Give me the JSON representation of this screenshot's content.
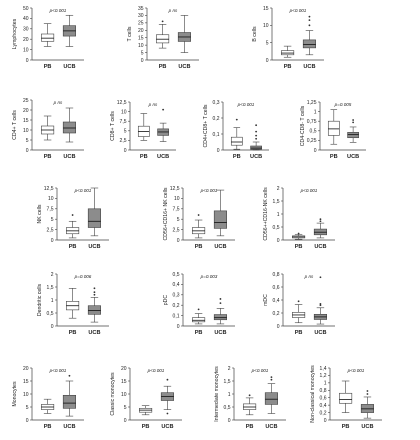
{
  "group_labels": [
    "PB",
    "UCB"
  ],
  "colors": {
    "pb_fill": "#ffffff",
    "ucb_fill": "#8c8c8c",
    "stroke": "#404040",
    "axis": "#404040"
  },
  "chart_data": [
    {
      "type": "boxplot",
      "ylabel": "Lymphocytes",
      "pvalue": "p<0.001",
      "ylim": [
        0,
        50
      ],
      "ticks": [
        "0",
        "10",
        "20",
        "30",
        "40",
        "50"
      ],
      "categories": [
        "PB",
        "UCB"
      ],
      "series": [
        {
          "min": 13,
          "q1": 18,
          "median": 21,
          "q3": 25,
          "max": 35,
          "outliers": []
        },
        {
          "min": 13,
          "q1": 23,
          "median": 28,
          "q3": 33,
          "max": 43,
          "outliers": []
        }
      ]
    },
    {
      "type": "boxplot",
      "ylabel": "T cells",
      "pvalue": "p ns",
      "ylim": [
        0,
        35
      ],
      "ticks": [
        "0",
        "5",
        "10",
        "15",
        "20",
        "25",
        "30",
        "35"
      ],
      "categories": [
        "PB",
        "UCB"
      ],
      "series": [
        {
          "min": 8,
          "q1": 11.5,
          "median": 14,
          "q3": 17,
          "max": 24,
          "outliers": [
            26
          ]
        },
        {
          "min": 5,
          "q1": 12.5,
          "median": 15.5,
          "q3": 18.5,
          "max": 30,
          "outliers": []
        }
      ]
    },
    {
      "type": "boxplot",
      "ylabel": "B cells",
      "pvalue": "p<0.001",
      "ylim": [
        0,
        15
      ],
      "ticks": [
        "0",
        "5",
        "10",
        "15"
      ],
      "categories": [
        "PB",
        "UCB"
      ],
      "series": [
        {
          "min": 0.8,
          "q1": 1.5,
          "median": 2,
          "q3": 2.7,
          "max": 4,
          "outliers": []
        },
        {
          "min": 1.5,
          "q1": 3.5,
          "median": 4.5,
          "q3": 5.8,
          "max": 8.5,
          "outliers": [
            10,
            11.5,
            12.5
          ]
        }
      ]
    },
    {
      "type": "boxplot",
      "ylabel": "CD4+ T cells",
      "pvalue": "p ns",
      "ylim": [
        0,
        25
      ],
      "ticks": [
        "0",
        "5",
        "10",
        "15",
        "20",
        "25"
      ],
      "categories": [
        "PB",
        "UCB"
      ],
      "series": [
        {
          "min": 5,
          "q1": 8,
          "median": 10,
          "q3": 12,
          "max": 17,
          "outliers": []
        },
        {
          "min": 4,
          "q1": 8.5,
          "median": 11,
          "q3": 14,
          "max": 21,
          "outliers": []
        }
      ]
    },
    {
      "type": "boxplot",
      "ylabel": "CD8+ T cells",
      "pvalue": "p ns",
      "ylim": [
        0,
        12.5
      ],
      "ticks": [
        "0",
        "2,5",
        "5",
        "7,5",
        "10",
        "12,5"
      ],
      "categories": [
        "PB",
        "UCB"
      ],
      "series": [
        {
          "min": 2.5,
          "q1": 3.5,
          "median": 4.8,
          "q3": 6.2,
          "max": 9.5,
          "outliers": []
        },
        {
          "min": 2.2,
          "q1": 3.8,
          "median": 4.7,
          "q3": 5.5,
          "max": 7,
          "outliers": [
            10.5
          ]
        }
      ]
    },
    {
      "type": "boxplot",
      "ylabel": "CD4+CD8+ T cells",
      "pvalue": "p<0.001",
      "ylim": [
        0,
        0.3
      ],
      "ticks": [
        "0",
        "0,1",
        "0,2",
        "0,3"
      ],
      "categories": [
        "PB",
        "UCB"
      ],
      "series": [
        {
          "min": 0.005,
          "q1": 0.03,
          "median": 0.05,
          "q3": 0.08,
          "max": 0.14,
          "outliers": [
            0.19
          ]
        },
        {
          "min": 0,
          "q1": 0.005,
          "median": 0.012,
          "q3": 0.025,
          "max": 0.05,
          "outliers": [
            0.07,
            0.09,
            0.115,
            0.155
          ]
        }
      ]
    },
    {
      "type": "boxplot",
      "ylabel": "CD4-CD8- T cells",
      "pvalue": "p=0.005",
      "ylim": [
        0,
        1.25
      ],
      "ticks": [
        "0",
        "0,25",
        "0,5",
        "0,75",
        "1",
        "1,25"
      ],
      "categories": [
        "PB",
        "UCB"
      ],
      "series": [
        {
          "min": 0.15,
          "q1": 0.38,
          "median": 0.55,
          "q3": 0.75,
          "max": 1.05,
          "outliers": []
        },
        {
          "min": 0.2,
          "q1": 0.32,
          "median": 0.4,
          "q3": 0.46,
          "max": 0.6,
          "outliers": [
            0.72,
            0.78
          ]
        }
      ]
    },
    {
      "type": "boxplot",
      "ylabel": "NK cells",
      "pvalue": "p<0.001",
      "ylim": [
        0,
        12.5
      ],
      "ticks": [
        "0",
        "2,5",
        "5",
        "7,5",
        "10",
        "12,5"
      ],
      "categories": [
        "PB",
        "UCB"
      ],
      "series": [
        {
          "min": 0.5,
          "q1": 1.5,
          "median": 2.2,
          "q3": 3,
          "max": 4.5,
          "outliers": [
            6
          ]
        },
        {
          "min": 1,
          "q1": 3,
          "median": 4.5,
          "q3": 7.5,
          "max": 12.5,
          "outliers": []
        }
      ]
    },
    {
      "type": "boxplot",
      "ylabel": "CD56+CD16+ NK cells",
      "pvalue": "p<0.001",
      "ylim": [
        0,
        12.5
      ],
      "ticks": [
        "0",
        "2,5",
        "5",
        "7,5",
        "10",
        "12,5"
      ],
      "categories": [
        "PB",
        "UCB"
      ],
      "series": [
        {
          "min": 0.5,
          "q1": 1.5,
          "median": 2.2,
          "q3": 3,
          "max": 4.8,
          "outliers": [
            6
          ]
        },
        {
          "min": 1,
          "q1": 2.8,
          "median": 4.2,
          "q3": 7,
          "max": 12,
          "outliers": []
        }
      ]
    },
    {
      "type": "boxplot",
      "ylabel": "CD56++CD16-NK cells",
      "pvalue": "p<0.001",
      "ylim": [
        0,
        2
      ],
      "ticks": [
        "0",
        "0,5",
        "1",
        "1,5",
        "2"
      ],
      "categories": [
        "PB",
        "UCB"
      ],
      "series": [
        {
          "min": 0.03,
          "q1": 0.08,
          "median": 0.12,
          "q3": 0.16,
          "max": 0.22,
          "outliers": [
            0.25
          ]
        },
        {
          "min": 0.08,
          "q1": 0.2,
          "median": 0.3,
          "q3": 0.42,
          "max": 0.65,
          "outliers": [
            0.72,
            0.8
          ]
        }
      ]
    },
    {
      "type": "boxplot",
      "ylabel": "Dendritic cells",
      "pvalue": "p=0.006",
      "ylim": [
        0,
        2
      ],
      "ticks": [
        "0",
        "0,5",
        "1",
        "1,5",
        "2"
      ],
      "categories": [
        "PB",
        "UCB"
      ],
      "series": [
        {
          "min": 0.3,
          "q1": 0.62,
          "median": 0.78,
          "q3": 0.95,
          "max": 1.45,
          "outliers": []
        },
        {
          "min": 0.15,
          "q1": 0.45,
          "median": 0.6,
          "q3": 0.78,
          "max": 1.1,
          "outliers": [
            1.2,
            1.3,
            1.45
          ]
        }
      ]
    },
    {
      "type": "boxplot",
      "ylabel": "pDC",
      "pvalue": "p=0.003",
      "ylim": [
        0,
        0.5
      ],
      "ticks": [
        "0",
        "0,1",
        "0,2",
        "0,3",
        "0,4",
        "0,5"
      ],
      "categories": [
        "PB",
        "UCB"
      ],
      "series": [
        {
          "min": 0.02,
          "q1": 0.04,
          "median": 0.055,
          "q3": 0.08,
          "max": 0.12,
          "outliers": [
            0.16
          ]
        },
        {
          "min": 0.02,
          "q1": 0.06,
          "median": 0.08,
          "q3": 0.11,
          "max": 0.17,
          "outliers": [
            0.22,
            0.26
          ]
        }
      ]
    },
    {
      "type": "boxplot",
      "ylabel": "mDC",
      "pvalue": "p ns",
      "ylim": [
        0,
        0.8
      ],
      "ticks": [
        "0",
        "0,2",
        "0,4",
        "0,6",
        "0,8"
      ],
      "categories": [
        "PB",
        "UCB"
      ],
      "series": [
        {
          "min": 0.05,
          "q1": 0.13,
          "median": 0.17,
          "q3": 0.21,
          "max": 0.33,
          "outliers": [
            0.38
          ]
        },
        {
          "min": 0.03,
          "q1": 0.1,
          "median": 0.14,
          "q3": 0.18,
          "max": 0.28,
          "outliers": [
            0.32,
            0.34,
            0.75
          ]
        }
      ]
    },
    {
      "type": "boxplot",
      "ylabel": "Monocytes",
      "pvalue": "p<0.001",
      "ylim": [
        0,
        20
      ],
      "ticks": [
        "0",
        "5",
        "10",
        "15",
        "20"
      ],
      "categories": [
        "PB",
        "UCB"
      ],
      "series": [
        {
          "min": 2.5,
          "q1": 4,
          "median": 5,
          "q3": 6,
          "max": 8,
          "outliers": []
        },
        {
          "min": 1.5,
          "q1": 4.5,
          "median": 6.5,
          "q3": 9.5,
          "max": 15,
          "outliers": [
            17
          ]
        }
      ]
    },
    {
      "type": "boxplot",
      "ylabel": "Classic monocytes",
      "pvalue": "p<0.001",
      "ylim": [
        0,
        20
      ],
      "ticks": [
        "0",
        "5",
        "10",
        "15",
        "20"
      ],
      "categories": [
        "PB",
        "UCB"
      ],
      "series": [
        {
          "min": 2,
          "q1": 3,
          "median": 3.8,
          "q3": 4.5,
          "max": 5.5,
          "outliers": []
        },
        {
          "min": 4,
          "q1": 7.5,
          "median": 9,
          "q3": 10.5,
          "max": 13,
          "outliers": [
            2.5,
            15.5
          ]
        }
      ]
    },
    {
      "type": "boxplot",
      "ylabel": "Intermediate monocytes",
      "pvalue": "p<0.001",
      "ylim": [
        0,
        2
      ],
      "ticks": [
        "0",
        "0,5",
        "1",
        "1,5",
        "2"
      ],
      "categories": [
        "PB",
        "UCB"
      ],
      "series": [
        {
          "min": 0.2,
          "q1": 0.4,
          "median": 0.5,
          "q3": 0.62,
          "max": 0.85,
          "outliers": [
            0.95
          ]
        },
        {
          "min": 0.25,
          "q1": 0.6,
          "median": 0.8,
          "q3": 1.05,
          "max": 1.4,
          "outliers": [
            1.55,
            1.65
          ]
        }
      ]
    },
    {
      "type": "boxplot",
      "ylabel": "Non-classical monocytes",
      "pvalue": "p<0.001",
      "ylim": [
        0,
        1.4
      ],
      "ticks": [
        "0",
        "0,2",
        "0,4",
        "0,6",
        "0,8",
        "1",
        "1,2",
        "1,4"
      ],
      "categories": [
        "PB",
        "UCB"
      ],
      "series": [
        {
          "min": 0.2,
          "q1": 0.45,
          "median": 0.55,
          "q3": 0.72,
          "max": 1.05,
          "outliers": []
        },
        {
          "min": 0.05,
          "q1": 0.2,
          "median": 0.3,
          "q3": 0.42,
          "max": 0.62,
          "outliers": [
            0.7,
            0.78
          ]
        }
      ]
    }
  ]
}
